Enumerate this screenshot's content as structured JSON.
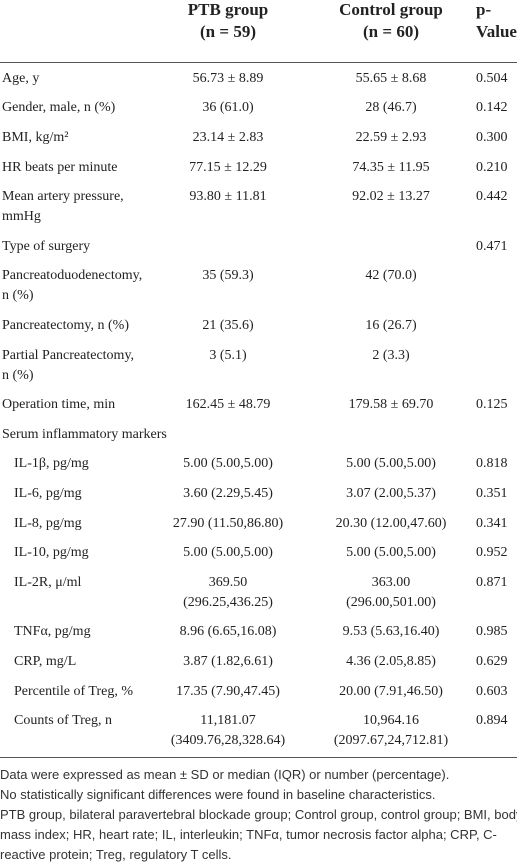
{
  "table": {
    "header": {
      "ptb": [
        "PTB group",
        "(n = 59)"
      ],
      "control": [
        "Control group",
        "(n = 60)"
      ],
      "p": [
        "p-",
        "Value"
      ]
    },
    "rows": [
      {
        "label": [
          "Age, y"
        ],
        "ptb": [
          "56.73 ± 8.89"
        ],
        "control": [
          "55.65 ± 8.68"
        ],
        "p": "0.504"
      },
      {
        "label": [
          "Gender, male, n (%)"
        ],
        "ptb": [
          "36 (61.0)"
        ],
        "control": [
          "28 (46.7)"
        ],
        "p": "0.142"
      },
      {
        "label": [
          "BMI, kg/m²"
        ],
        "ptb": [
          "23.14 ± 2.83"
        ],
        "control": [
          "22.59 ± 2.93"
        ],
        "p": "0.300"
      },
      {
        "label": [
          "HR beats per minute"
        ],
        "ptb": [
          "77.15 ± 12.29"
        ],
        "control": [
          "74.35 ± 11.95"
        ],
        "p": "0.210"
      },
      {
        "label": [
          "Mean artery pressure,",
          "mmHg"
        ],
        "ptb": [
          "93.80 ± 11.81"
        ],
        "control": [
          "92.02 ± 13.27"
        ],
        "p": "0.442"
      },
      {
        "label": [
          "Type of surgery"
        ],
        "p": "0.471"
      },
      {
        "label": [
          "Pancreatoduodenectomy,",
          "n (%)"
        ],
        "ptb": [
          "35 (59.3)"
        ],
        "control": [
          "42 (70.0)"
        ]
      },
      {
        "label": [
          "Pancreatectomy, n (%)"
        ],
        "ptb": [
          "21 (35.6)"
        ],
        "control": [
          "16 (26.7)"
        ]
      },
      {
        "label": [
          "Partial Pancreatectomy,",
          "n (%)"
        ],
        "ptb": [
          "3 (5.1)"
        ],
        "control": [
          "2 (3.3)"
        ]
      },
      {
        "label": [
          "Operation time, min"
        ],
        "ptb": [
          "162.45 ± 48.79"
        ],
        "control": [
          "179.58 ± 69.70"
        ],
        "p": "0.125"
      },
      {
        "label": [
          "Serum inflammatory markers"
        ]
      },
      {
        "label": [
          "IL-1β, pg/mg"
        ],
        "indent": true,
        "ptb": [
          "5.00 (5.00,5.00)"
        ],
        "control": [
          "5.00 (5.00,5.00)"
        ],
        "p": "0.818"
      },
      {
        "label": [
          "IL-6, pg/mg"
        ],
        "indent": true,
        "ptb": [
          "3.60 (2.29,5.45)"
        ],
        "control": [
          "3.07 (2.00,5.37)"
        ],
        "p": "0.351"
      },
      {
        "label": [
          "IL-8, pg/mg"
        ],
        "indent": true,
        "ptb": [
          "27.90 (11.50,86.80)"
        ],
        "control": [
          "20.30 (12.00,47.60)"
        ],
        "p": "0.341"
      },
      {
        "label": [
          "IL-10, pg/mg"
        ],
        "indent": true,
        "ptb": [
          "5.00 (5.00,5.00)"
        ],
        "control": [
          "5.00 (5.00,5.00)"
        ],
        "p": "0.952"
      },
      {
        "label": [
          "IL-2R, μ/ml"
        ],
        "indent": true,
        "ptb": [
          "369.50",
          "(296.25,436.25)"
        ],
        "control": [
          "363.00",
          "(296.00,501.00)"
        ],
        "p": "0.871"
      },
      {
        "label": [
          "TNFα, pg/mg"
        ],
        "indent": true,
        "ptb": [
          "8.96 (6.65,16.08)"
        ],
        "control": [
          "9.53 (5.63,16.40)"
        ],
        "p": "0.985"
      },
      {
        "label": [
          "CRP, mg/L"
        ],
        "indent": true,
        "ptb": [
          "3.87 (1.82,6.61)"
        ],
        "control": [
          "4.36 (2.05,8.85)"
        ],
        "p": "0.629"
      },
      {
        "label": [
          "Percentile of Treg, %"
        ],
        "indent": true,
        "ptb": [
          "17.35 (7.90,47.45)"
        ],
        "control": [
          "20.00 (7.91,46.50)"
        ],
        "p": "0.603"
      },
      {
        "label": [
          "Counts of Treg, n"
        ],
        "indent": true,
        "ptb": [
          "11,181.07",
          "(3409.76,28,328.64)"
        ],
        "control": [
          "10,964.16",
          "(2097.67,24,712.81)"
        ],
        "p": "0.894"
      }
    ]
  },
  "footnotes": [
    "Data were expressed as mean ± SD or median (IQR) or number (percentage).",
    "No statistically significant differences were found in baseline characteristics.",
    "PTB group, bilateral paravertebral blockade group; Control group, control group; BMI, body mass index; HR, heart rate; IL, interleukin; TNFα, tumor necrosis factor alpha; CRP, C-reactive protein; Treg, regulatory T cells."
  ]
}
